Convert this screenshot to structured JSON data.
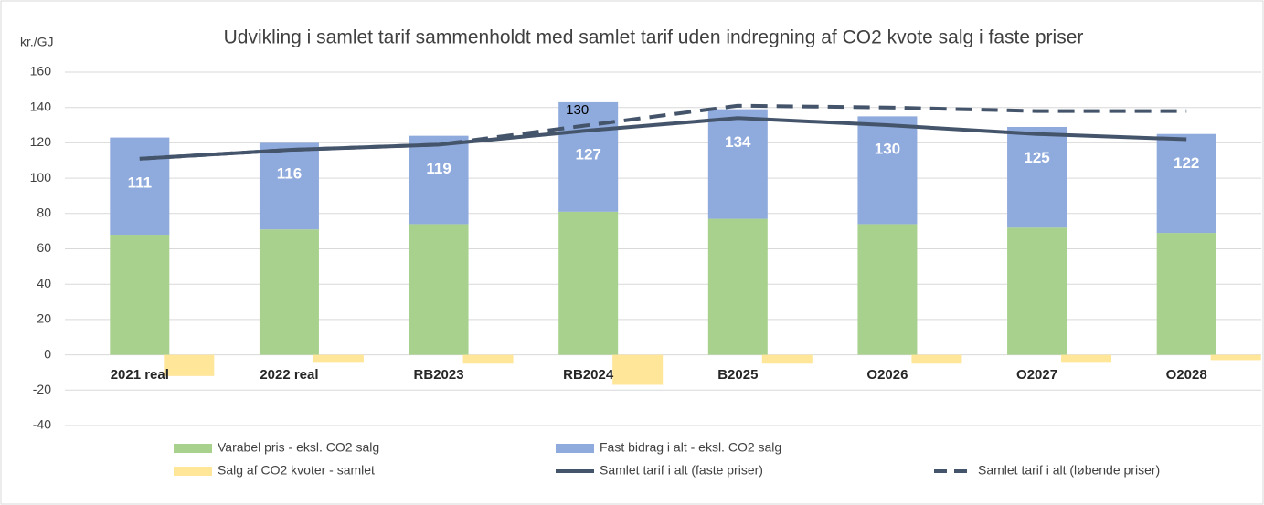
{
  "chart_data": {
    "type": "bar",
    "title": "Udvikling i samlet tarif sammenholdt med samlet tarif uden indregning af CO2 kvote salg i faste priser",
    "y_label": "kr./GJ",
    "categories": [
      "2021 real",
      "2022 real",
      "RB2023",
      "RB2024",
      "B2025",
      "O2026",
      "O2027",
      "O2028"
    ],
    "ylim": [
      -40,
      160
    ],
    "yticks": [
      -40,
      -20,
      0,
      20,
      40,
      60,
      80,
      100,
      120,
      140,
      160
    ],
    "grid": true,
    "series": [
      {
        "name": "Varabel pris - eksl. CO2 salg",
        "kind": "bar",
        "stack": true,
        "color": "#a9d18e",
        "values": [
          68,
          71,
          74,
          81,
          77,
          74,
          72,
          69
        ]
      },
      {
        "name": "Fast bidrag i alt - eksl. CO2 salg",
        "kind": "bar",
        "stack": true,
        "color": "#8faadc",
        "values": [
          55,
          49,
          50,
          62,
          62,
          61,
          57,
          56
        ]
      },
      {
        "name": "Salg af CO2 kvoter - samlet",
        "kind": "bar",
        "stack": false,
        "color": "#ffe699",
        "values": [
          -12,
          -4,
          -5,
          -17,
          -5,
          -5,
          -4,
          -3
        ]
      },
      {
        "name": "Samlet tarif i alt (faste priser)",
        "kind": "line",
        "dashed": false,
        "color": "#44546a",
        "values": [
          111,
          116,
          119,
          127,
          134,
          130,
          125,
          122
        ],
        "show_labels": true
      },
      {
        "name": "Samlet tarif i alt (løbende priser)",
        "kind": "line",
        "dashed": true,
        "color": "#44546a",
        "values": [
          111,
          116,
          119,
          130,
          141,
          140,
          138,
          138
        ],
        "value_labels": [
          null,
          null,
          null,
          "130",
          null,
          null,
          null,
          null
        ]
      }
    ]
  }
}
